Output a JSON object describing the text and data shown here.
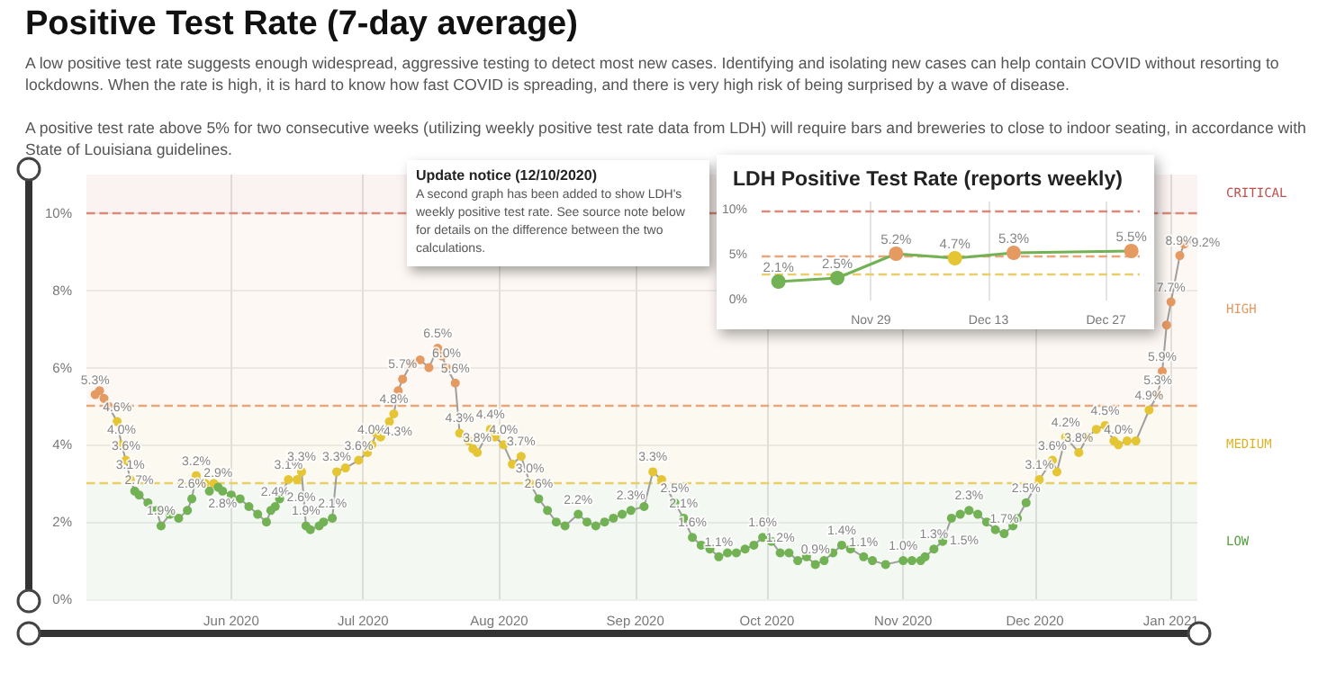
{
  "chart_data": [
    {
      "type": "line",
      "title": "Positive Test Rate (7-day average)",
      "subtitle": "A low positive test rate suggests enough widespread, aggressive testing to detect most new cases. Identifying and isolating new cases can help contain COVID without resorting to lockdowns. When the rate is high, it is hard to know how fast COVID is spreading, and there is very high risk of being surprised by a wave of disease.\n\nA positive test rate above 5% for two consecutive weeks (utilizing weekly positive test rate data from LDH) will require bars and breweries to close to indoor seating, in accordance with State of Louisiana guidelines.",
      "annotations": [
        "Update notice (12/10/2020)",
        "A second graph has been added to show LDH's weekly positive test rate. See source note below for details on the difference between the two calculations."
      ],
      "x": [
        "2020-05-01",
        "2020-05-02",
        "2020-05-03",
        "2020-05-04",
        "2020-05-06",
        "2020-05-07",
        "2020-05-08",
        "2020-05-09",
        "2020-05-10",
        "2020-05-11",
        "2020-05-13",
        "2020-05-15",
        "2020-05-16",
        "2020-05-18",
        "2020-05-20",
        "2020-05-22",
        "2020-05-23",
        "2020-05-24",
        "2020-05-26",
        "2020-05-27",
        "2020-05-28",
        "2020-05-29",
        "2020-05-30",
        "2020-06-01",
        "2020-06-03",
        "2020-06-05",
        "2020-06-07",
        "2020-06-09",
        "2020-06-10",
        "2020-06-11",
        "2020-06-12",
        "2020-06-14",
        "2020-06-16",
        "2020-06-17",
        "2020-06-18",
        "2020-06-19",
        "2020-06-21",
        "2020-06-22",
        "2020-06-24",
        "2020-06-25",
        "2020-06-27",
        "2020-06-30",
        "2020-07-02",
        "2020-07-03",
        "2020-07-04",
        "2020-07-05",
        "2020-07-07",
        "2020-07-08",
        "2020-07-09",
        "2020-07-10",
        "2020-07-12",
        "2020-07-14",
        "2020-07-16",
        "2020-07-18",
        "2020-07-19",
        "2020-07-20",
        "2020-07-22",
        "2020-07-23",
        "2020-07-25",
        "2020-07-26",
        "2020-07-27",
        "2020-07-30",
        "2020-07-31",
        "2020-08-02",
        "2020-08-04",
        "2020-08-06",
        "2020-08-08",
        "2020-08-10",
        "2020-08-12",
        "2020-08-14",
        "2020-08-16",
        "2020-08-19",
        "2020-08-21",
        "2020-08-23",
        "2020-08-25",
        "2020-08-27",
        "2020-08-29",
        "2020-08-31",
        "2020-09-03",
        "2020-09-05",
        "2020-09-07",
        "2020-09-10",
        "2020-09-12",
        "2020-09-14",
        "2020-09-16",
        "2020-09-18",
        "2020-09-20",
        "2020-09-22",
        "2020-09-24",
        "2020-09-26",
        "2020-09-28",
        "2020-09-30",
        "2020-10-02",
        "2020-10-04",
        "2020-10-06",
        "2020-10-08",
        "2020-10-10",
        "2020-10-12",
        "2020-10-14",
        "2020-10-16",
        "2020-10-18",
        "2020-10-20",
        "2020-10-23",
        "2020-10-25",
        "2020-10-28",
        "2020-11-01",
        "2020-11-03",
        "2020-11-05",
        "2020-11-06",
        "2020-11-08",
        "2020-11-10",
        "2020-11-12",
        "2020-11-14",
        "2020-11-16",
        "2020-11-18",
        "2020-11-20",
        "2020-11-22",
        "2020-11-24",
        "2020-11-26",
        "2020-11-27",
        "2020-11-29",
        "2020-12-02",
        "2020-12-05",
        "2020-12-06",
        "2020-12-08",
        "2020-12-11",
        "2020-12-13",
        "2020-12-15",
        "2020-12-17",
        "2020-12-19",
        "2020-12-20",
        "2020-12-22",
        "2020-12-24",
        "2020-12-27",
        "2020-12-29",
        "2020-12-30",
        "2020-12-31",
        "2021-01-01",
        "2021-01-03",
        "2021-01-04"
      ],
      "series": [
        {
          "color": "#9e9e9e",
          "values": [
            5.3,
            5.4,
            5.2,
            5.0,
            4.6,
            4.0,
            3.6,
            3.1,
            2.8,
            2.7,
            2.5,
            2.3,
            1.9,
            2.2,
            2.1,
            2.3,
            2.6,
            3.2,
            3.0,
            2.8,
            3.0,
            2.9,
            2.8,
            2.7,
            2.6,
            2.4,
            2.2,
            2.0,
            2.3,
            2.4,
            2.6,
            3.1,
            3.1,
            3.3,
            1.9,
            1.8,
            1.9,
            2.0,
            2.1,
            3.3,
            3.4,
            3.6,
            3.8,
            4.0,
            4.3,
            4.2,
            4.6,
            4.8,
            5.4,
            5.7,
            6.1,
            6.2,
            6.0,
            6.5,
            6.3,
            6.0,
            5.6,
            4.3,
            4.1,
            3.9,
            3.8,
            4.4,
            4.2,
            4.0,
            3.5,
            3.7,
            3.0,
            2.6,
            2.3,
            2.0,
            1.9,
            2.2,
            2.0,
            1.9,
            2.0,
            2.1,
            2.2,
            2.3,
            2.4,
            3.3,
            3.1,
            2.5,
            2.1,
            1.6,
            1.4,
            1.3,
            1.1,
            1.2,
            1.2,
            1.3,
            1.4,
            1.6,
            1.5,
            1.2,
            1.2,
            1.0,
            1.1,
            0.9,
            1.0,
            1.2,
            1.4,
            1.3,
            1.1,
            1.0,
            0.9,
            1.0,
            1.0,
            1.0,
            1.1,
            1.3,
            1.5,
            2.1,
            2.2,
            2.3,
            2.2,
            2.0,
            1.8,
            1.7,
            1.9,
            2.1,
            2.5,
            3.1,
            3.6,
            3.3,
            4.2,
            3.8,
            4.2,
            4.4,
            4.5,
            4.1,
            4.0,
            4.1,
            4.1,
            4.9,
            5.3,
            5.9,
            7.1,
            7.7,
            8.9,
            9.2
          ],
          "colors": [
            "#e59a62",
            "#e59a62",
            "#e59a62",
            "#e59a62",
            "#e5c534",
            "#e5c534",
            "#e5c534",
            "#e5c534",
            "#72b255",
            "#72b255",
            "#72b255",
            "#72b255",
            "#72b255",
            "#72b255",
            "#72b255",
            "#72b255",
            "#72b255",
            "#e5c534",
            "#e5c534",
            "#72b255",
            "#e5c534",
            "#72b255",
            "#72b255",
            "#72b255",
            "#72b255",
            "#72b255",
            "#72b255",
            "#72b255",
            "#72b255",
            "#72b255",
            "#72b255",
            "#e5c534",
            "#e5c534",
            "#e5c534",
            "#72b255",
            "#72b255",
            "#72b255",
            "#72b255",
            "#72b255",
            "#e5c534",
            "#e5c534",
            "#e5c534",
            "#e5c534",
            "#e5c534",
            "#e5c534",
            "#e5c534",
            "#e5c534",
            "#e5c534",
            "#e59a62",
            "#e59a62",
            "#e59a62",
            "#e59a62",
            "#e59a62",
            "#e59a62",
            "#e59a62",
            "#e59a62",
            "#e59a62",
            "#e5c534",
            "#e5c534",
            "#e5c534",
            "#e5c534",
            "#e5c534",
            "#e5c534",
            "#e5c534",
            "#e5c534",
            "#e5c534",
            "#e5c534",
            "#72b255",
            "#72b255",
            "#72b255",
            "#72b255",
            "#72b255",
            "#72b255",
            "#72b255",
            "#72b255",
            "#72b255",
            "#72b255",
            "#72b255",
            "#72b255",
            "#e5c534",
            "#e5c534",
            "#72b255",
            "#72b255",
            "#72b255",
            "#72b255",
            "#72b255",
            "#72b255",
            "#72b255",
            "#72b255",
            "#72b255",
            "#72b255",
            "#72b255",
            "#72b255",
            "#72b255",
            "#72b255",
            "#72b255",
            "#72b255",
            "#72b255",
            "#72b255",
            "#72b255",
            "#72b255",
            "#72b255",
            "#72b255",
            "#72b255",
            "#72b255",
            "#72b255",
            "#72b255",
            "#72b255",
            "#72b255",
            "#72b255",
            "#72b255",
            "#72b255",
            "#72b255",
            "#72b255",
            "#72b255",
            "#72b255",
            "#72b255",
            "#72b255",
            "#72b255",
            "#72b255",
            "#72b255",
            "#e5c534",
            "#e5c534",
            "#e5c534",
            "#e5c534",
            "#e5c534",
            "#e5c534",
            "#e5c534",
            "#e5c534",
            "#e5c534",
            "#e5c534",
            "#e5c534",
            "#e5c534",
            "#e5c534",
            "#e59a62",
            "#e59a62",
            "#e59a62",
            "#e59a62",
            "#e59a62",
            "#e59a62"
          ],
          "value_labels": [
            "5.3%",
            null,
            null,
            null,
            "4.6%",
            "4.0%",
            "3.6%",
            "3.1%",
            null,
            "2.7%",
            null,
            null,
            "1.9%",
            null,
            null,
            null,
            "2.6%",
            "3.2%",
            null,
            null,
            null,
            "2.9%",
            "2.8%",
            null,
            null,
            null,
            null,
            null,
            null,
            "2.4%",
            "2.6%",
            "3.1%",
            null,
            "3.3%",
            "1.9%",
            null,
            null,
            null,
            "2.1%",
            "3.3%",
            null,
            "3.6%",
            null,
            "4.0%",
            "4.3%",
            null,
            null,
            "4.8%",
            null,
            "5.7%",
            null,
            null,
            null,
            "6.5%",
            null,
            "6.0%",
            "5.6%",
            "4.3%",
            null,
            null,
            "3.8%",
            "4.4%",
            null,
            "4.0%",
            null,
            "3.7%",
            "3.0%",
            "2.6%",
            null,
            null,
            null,
            "2.2%",
            null,
            null,
            null,
            null,
            null,
            "2.3%",
            null,
            "3.3%",
            null,
            "2.5%",
            "2.1%",
            "1.6%",
            null,
            null,
            "1.1%",
            null,
            null,
            null,
            null,
            "1.6%",
            null,
            "1.2%",
            null,
            null,
            null,
            "0.9%",
            null,
            null,
            "1.4%",
            null,
            "1.1%",
            null,
            null,
            "1.0%",
            null,
            null,
            null,
            "1.3%",
            "1.5%",
            null,
            null,
            "2.3%",
            null,
            null,
            null,
            "1.7%",
            null,
            null,
            "2.5%",
            "3.1%",
            "3.6%",
            null,
            "4.2%",
            "3.8%",
            null,
            null,
            "4.5%",
            null,
            "4.0%",
            null,
            null,
            "4.9%",
            "5.3%",
            "5.9%",
            null,
            "7.7%",
            "8.9%",
            "9.2%"
          ]
        }
      ],
      "xlim": [
        "2020-04-29",
        "2021-01-07"
      ],
      "xticks": [
        {
          "value": "2020-06-01",
          "label": "Jun 2020"
        },
        {
          "value": "2020-07-01",
          "label": "Jul 2020"
        },
        {
          "value": "2020-08-01",
          "label": "Aug 2020"
        },
        {
          "value": "2020-09-01",
          "label": "Sep 2020"
        },
        {
          "value": "2020-10-01",
          "label": "Oct 2020"
        },
        {
          "value": "2020-11-01",
          "label": "Nov 2020"
        },
        {
          "value": "2020-12-01",
          "label": "Dec 2020"
        },
        {
          "value": "2021-01-01",
          "label": "Jan 2021"
        }
      ],
      "ylim": [
        0,
        11
      ],
      "yticks": [
        {
          "value": 0,
          "label": "0%"
        },
        {
          "value": 2,
          "label": "2%"
        },
        {
          "value": 4,
          "label": "4%"
        },
        {
          "value": 6,
          "label": "6%"
        },
        {
          "value": 8,
          "label": "8%"
        },
        {
          "value": 10,
          "label": "10%"
        }
      ],
      "ref_lines": [
        {
          "axis": "y",
          "value": 10,
          "color": "#d98a7a",
          "line_style": "dashed"
        },
        {
          "axis": "y",
          "value": 5,
          "color": "#e8a77a",
          "line_style": "dashed"
        },
        {
          "axis": "y",
          "value": 3,
          "color": "#e8cf6a",
          "line_style": "dashed"
        }
      ],
      "bands": [
        {
          "axis": "y",
          "from": 10,
          "to": 11,
          "label": "CRITICAL",
          "color": "#c0504d"
        },
        {
          "axis": "y",
          "from": 5,
          "to": 10,
          "label": "HIGH",
          "color": "#e59a62"
        },
        {
          "axis": "y",
          "from": 3,
          "to": 5,
          "label": "MEDIUM",
          "color": "#d9b42a"
        },
        {
          "axis": "y",
          "from": 0,
          "to": 3,
          "label": "LOW",
          "color": "#5a9e44"
        }
      ],
      "grid": true,
      "marker": "circle",
      "line_style": "solid"
    },
    {
      "type": "line",
      "title": "LDH Positive Test Rate (reports weekly)",
      "x": [
        "2020-11-18",
        "2020-11-25",
        "2020-12-02",
        "2020-12-09",
        "2020-12-16",
        "2020-12-30"
      ],
      "series": [
        {
          "color": "#72b255",
          "values": [
            2.1,
            2.5,
            5.2,
            4.7,
            5.3,
            5.5
          ],
          "colors": [
            "#72b255",
            "#72b255",
            "#e59a62",
            "#e5c534",
            "#e59a62",
            "#e59a62"
          ],
          "value_labels": [
            "2.1%",
            "2.5%",
            "5.2%",
            "4.7%",
            "5.3%",
            "5.5%"
          ]
        }
      ],
      "xlim": [
        "2020-11-16",
        "2020-12-31"
      ],
      "xticks": [
        {
          "value": "2020-11-29",
          "label": "Nov 29"
        },
        {
          "value": "2020-12-13",
          "label": "Dec 13"
        },
        {
          "value": "2020-12-27",
          "label": "Dec 27"
        }
      ],
      "ylim": [
        0,
        11
      ],
      "yticks": [
        {
          "value": 0,
          "label": "0%"
        },
        {
          "value": 5,
          "label": "5%"
        },
        {
          "value": 10,
          "label": "10%"
        }
      ],
      "ref_lines": [
        {
          "axis": "y",
          "value": 10,
          "color": "#d98a7a",
          "line_style": "dashed"
        },
        {
          "axis": "y",
          "value": 5,
          "color": "#e8a77a",
          "line_style": "dashed"
        },
        {
          "axis": "y",
          "value": 3,
          "color": "#e8cf6a",
          "line_style": "dashed"
        }
      ],
      "grid": "x",
      "marker": "circle",
      "line_style": "solid"
    }
  ]
}
